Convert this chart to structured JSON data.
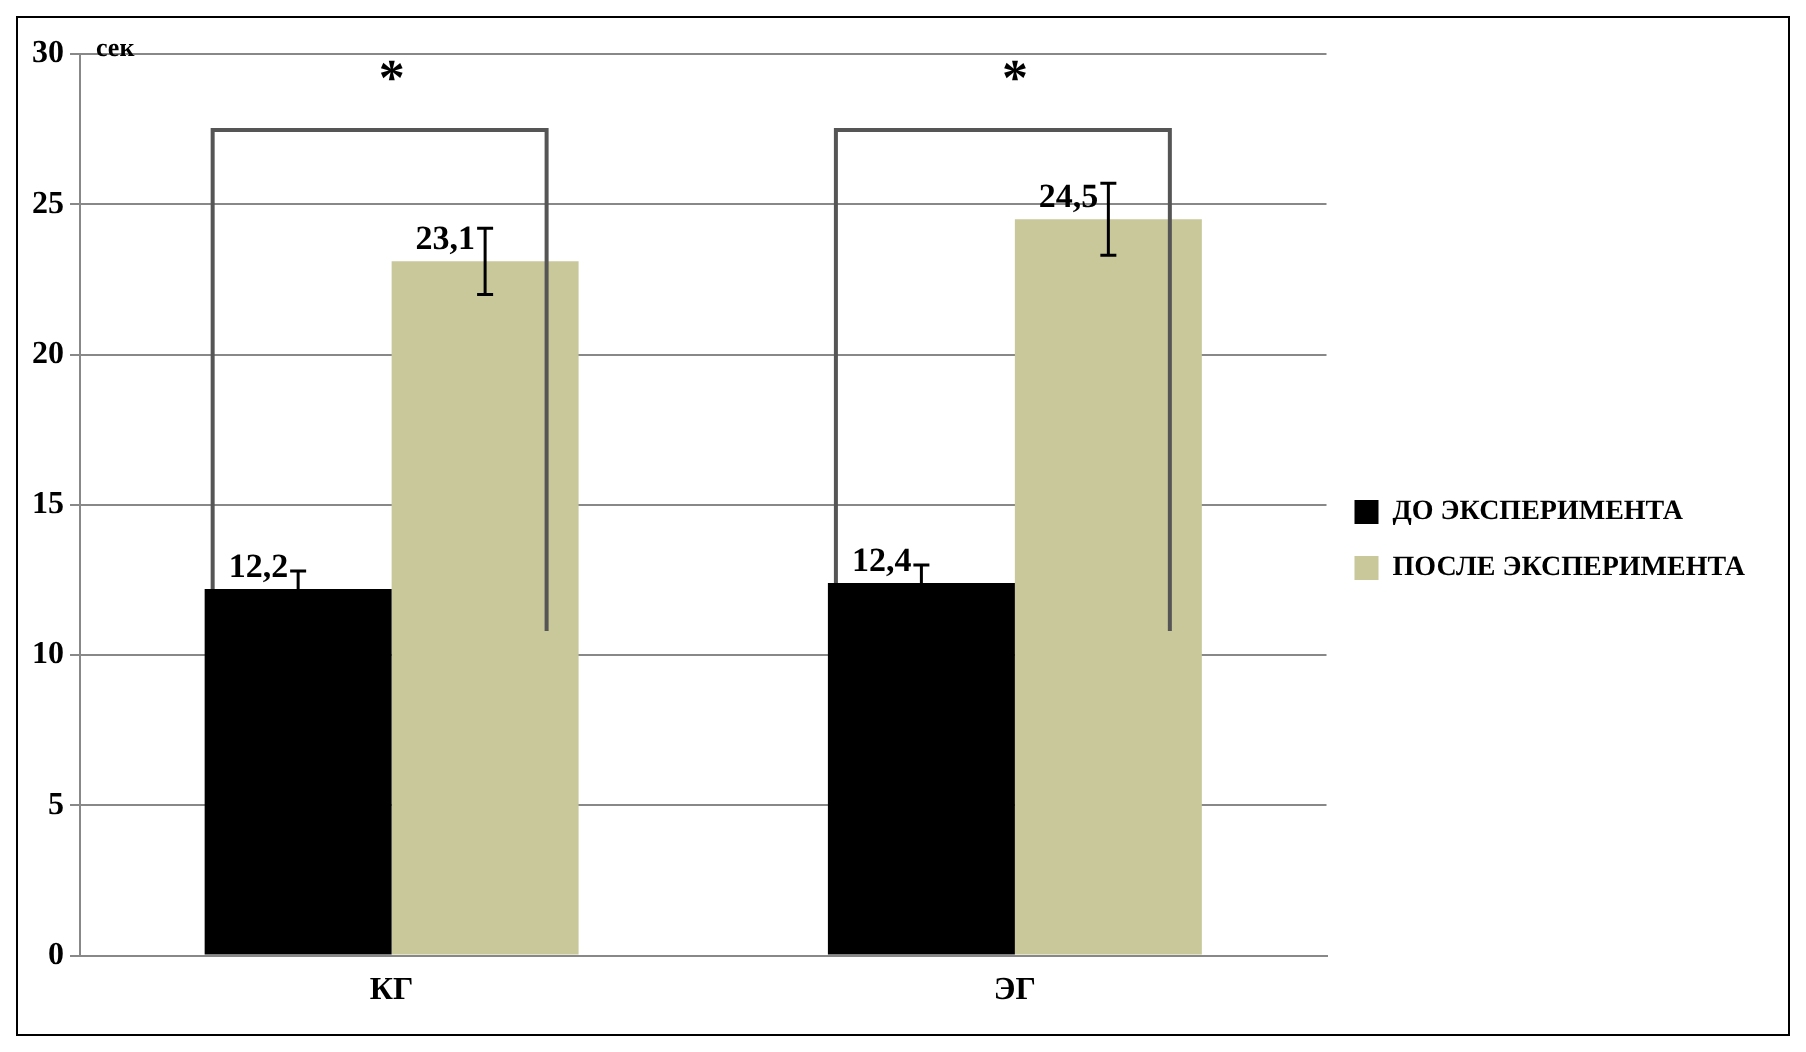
{
  "chart_data": {
    "type": "bar",
    "ylabel": "сек",
    "categories": [
      "КГ",
      "ЭГ"
    ],
    "series": [
      {
        "name": "ДО ЭКСПЕРИМЕНТА",
        "color": "#000000",
        "values": [
          12.2,
          12.4
        ],
        "errors": [
          0.6,
          0.6
        ],
        "value_labels": [
          "12,2",
          "12,4"
        ]
      },
      {
        "name": "ПОСЛЕ ЭКСПЕРИМЕНТА",
        "color": "#c8c89a",
        "values": [
          23.1,
          24.5
        ],
        "errors": [
          1.1,
          1.2
        ],
        "value_labels": [
          "23,1",
          "24,5"
        ]
      }
    ],
    "annotations": [
      "*",
      "*"
    ],
    "ylim": [
      0,
      30
    ],
    "yticks": [
      0,
      5,
      10,
      15,
      20,
      25,
      30
    ],
    "grid": "y",
    "legend": "right"
  }
}
